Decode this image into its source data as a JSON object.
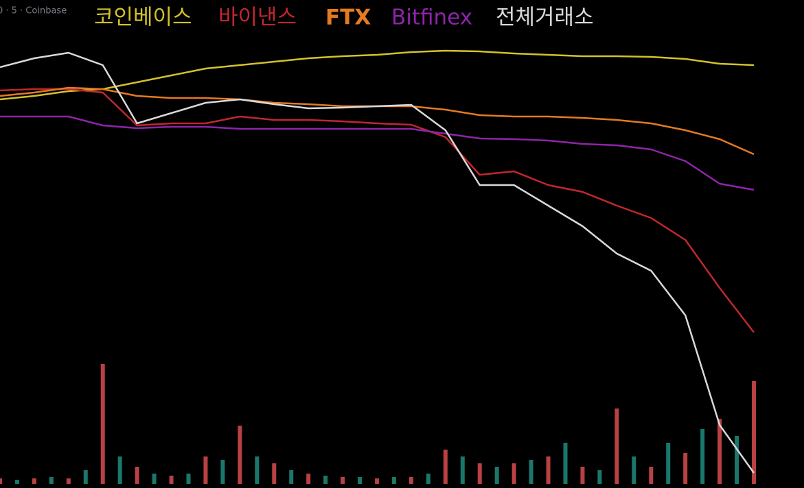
{
  "chart_data": {
    "type": "line",
    "source": "0 · 5 · Coinbase",
    "ylim": [
      0,
      712
    ],
    "series": [
      {
        "name": "코인베이스",
        "color": "#d4c12b",
        "values": [
          567,
          572,
          579,
          582,
          592,
          602,
          612,
          617,
          622,
          627,
          630,
          632,
          636,
          638,
          637,
          634,
          632,
          630,
          630,
          629,
          626,
          619,
          617
        ]
      },
      {
        "name": "바이낸스",
        "color": "#c0272d",
        "values": [
          580,
          582,
          582,
          577,
          529,
          532,
          532,
          542,
          537,
          537,
          535,
          532,
          530,
          512,
          457,
          462,
          442,
          432,
          412,
          394,
          362,
          292,
          227
        ]
      },
      {
        "name": "FTX",
        "color": "#e47a22",
        "values": [
          572,
          577,
          584,
          582,
          572,
          569,
          569,
          567,
          562,
          560,
          557,
          557,
          557,
          552,
          544,
          542,
          542,
          540,
          537,
          532,
          522,
          509,
          487
        ]
      },
      {
        "name": "Bitfinex",
        "color": "#8e24aa",
        "values": [
          542,
          542,
          542,
          529,
          525,
          527,
          527,
          524,
          524,
          524,
          524,
          524,
          524,
          517,
          510,
          509,
          507,
          502,
          500,
          494,
          477,
          444,
          435
        ]
      },
      {
        "name": "전체거래소",
        "color": "#d9d9d9",
        "values": [
          614,
          627,
          635,
          617,
          532,
          547,
          562,
          567,
          560,
          554,
          555,
          557,
          559,
          522,
          442,
          442,
          412,
          382,
          342,
          317,
          252,
          92,
          22
        ]
      }
    ],
    "volume": {
      "type": "bar",
      "colors": [
        "#d84c4c",
        "#1f8c7e"
      ],
      "ylim": [
        0,
        180
      ],
      "values": [
        8,
        6,
        8,
        10,
        8,
        20,
        175,
        40,
        25,
        15,
        12,
        15,
        40,
        35,
        85,
        40,
        30,
        20,
        15,
        12,
        10,
        10,
        8,
        10,
        10,
        15,
        50,
        40,
        30,
        25,
        30,
        35,
        40,
        60,
        25,
        20,
        110,
        40,
        25,
        60,
        45,
        80,
        95,
        70,
        150
      ]
    }
  }
}
